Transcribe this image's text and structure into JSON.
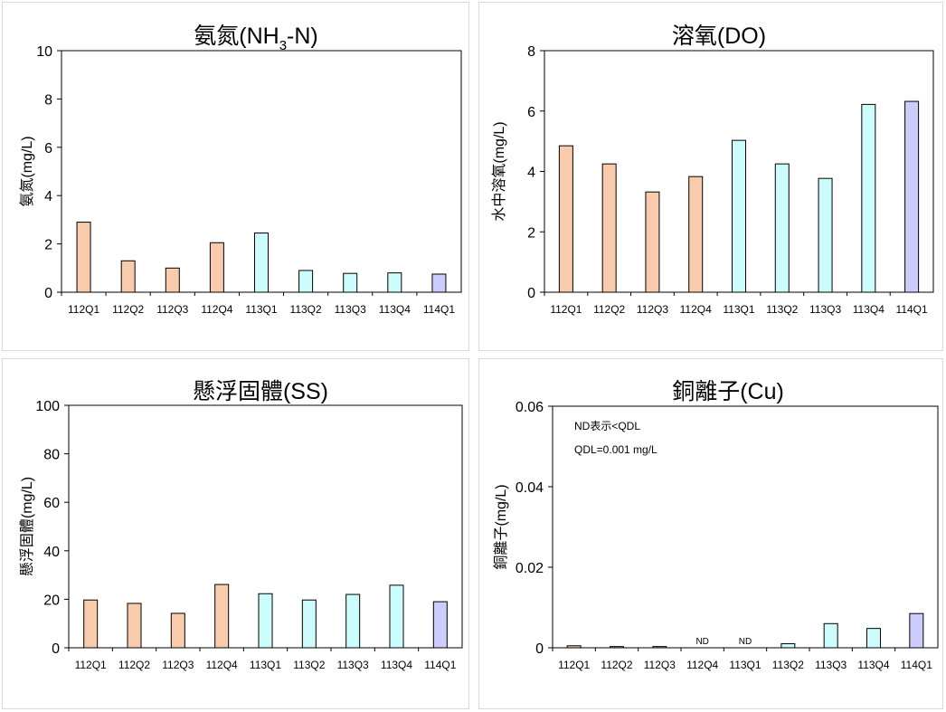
{
  "categories": [
    "112Q1",
    "112Q2",
    "112Q3",
    "112Q4",
    "113Q1",
    "113Q2",
    "113Q3",
    "113Q4",
    "114Q1"
  ],
  "colors": {
    "2023": "#f8cbad",
    "2024": "#ccfcfc",
    "2025": "#ccccff",
    "stroke": "#000000"
  },
  "chart_data": [
    {
      "type": "bar",
      "title": "氨氮(NH3-N)",
      "title_parts": {
        "main": "氨氮(NH",
        "sub": "3",
        "tail": "-N)"
      },
      "ylabel": "氨氮(mg/L)",
      "ylim": [
        0,
        10
      ],
      "yticks": [
        "0",
        "2",
        "4",
        "6",
        "8",
        "10"
      ],
      "values": [
        2.9,
        1.3,
        1.0,
        2.05,
        2.45,
        0.9,
        0.78,
        0.8,
        0.75
      ],
      "grid": false,
      "legend": "none"
    },
    {
      "type": "bar",
      "title": "溶氧(DO)",
      "ylabel": "水中溶氧(mg/L)",
      "ylim": [
        0,
        8
      ],
      "yticks": [
        "0",
        "2",
        "4",
        "6",
        "8"
      ],
      "values": [
        4.85,
        4.25,
        3.32,
        3.83,
        5.03,
        4.25,
        3.77,
        6.22,
        6.32
      ],
      "grid": false,
      "legend": "none"
    },
    {
      "type": "bar",
      "title": "懸浮固體(SS)",
      "ylabel": "懸浮固體(mg/L)",
      "ylim": [
        0,
        100
      ],
      "yticks": [
        "0",
        "20",
        "40",
        "60",
        "80",
        "100"
      ],
      "values": [
        19.7,
        18.3,
        14.2,
        26.1,
        22.3,
        19.7,
        22.0,
        25.8,
        19.0
      ],
      "grid": false,
      "legend": "none"
    },
    {
      "type": "bar",
      "title": "銅離子(Cu)",
      "ylabel": "銅離子(mg/L)",
      "ylim": [
        0,
        0.06
      ],
      "yticks": [
        "0",
        "0.02",
        "0.04",
        "0.06"
      ],
      "values": [
        0.0005,
        0.0003,
        0.0003,
        0,
        0,
        0.001,
        0.006,
        0.0048,
        0.0085
      ],
      "nd_labels": [
        "",
        "",
        "",
        "ND",
        "ND",
        "",
        "",
        "",
        ""
      ],
      "annotations": [
        "ND表示<QDL",
        "QDL=0.001 mg/L"
      ],
      "grid": false,
      "legend": "none"
    }
  ]
}
